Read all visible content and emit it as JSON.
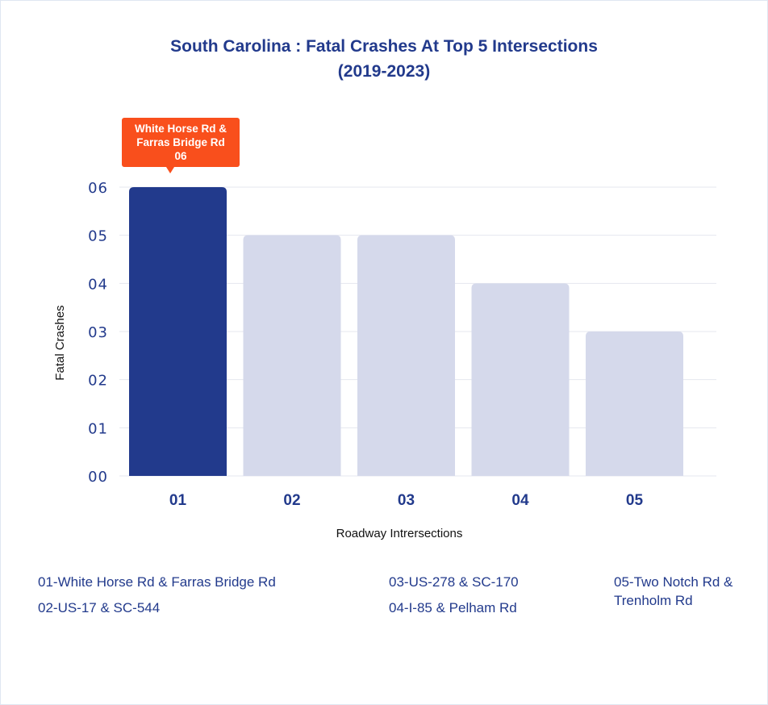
{
  "title_line1": "South Carolina : Fatal Crashes At Top 5 Intersections",
  "title_line2": "(2019-2023)",
  "chart_data": {
    "type": "bar",
    "title": "South Carolina : Fatal Crashes At Top 5 Intersections (2019-2023)",
    "xlabel": "Roadway Intrersections",
    "ylabel": "Fatal Crashes",
    "categories": [
      "01",
      "02",
      "03",
      "04",
      "05"
    ],
    "values": [
      6,
      5,
      5,
      4,
      3
    ],
    "ylim": [
      0,
      6
    ],
    "yticks": [
      "00",
      "01",
      "02",
      "03",
      "04",
      "05",
      "06"
    ],
    "grid": true,
    "highlight_index": 0,
    "highlight_color": "#223a8c",
    "bar_color": "#d5d9eb",
    "callout": {
      "line1": "White Horse Rd &",
      "line2": "Farras Bridge Rd",
      "line3": "06",
      "color": "#f94f1c"
    }
  },
  "legend": [
    "01-White Horse Rd & Farras Bridge Rd",
    "02-US-17 & SC-544",
    "03-US-278 & SC-170",
    "04-I-85 & Pelham Rd",
    "05-Two Notch Rd & Trenholm Rd"
  ]
}
